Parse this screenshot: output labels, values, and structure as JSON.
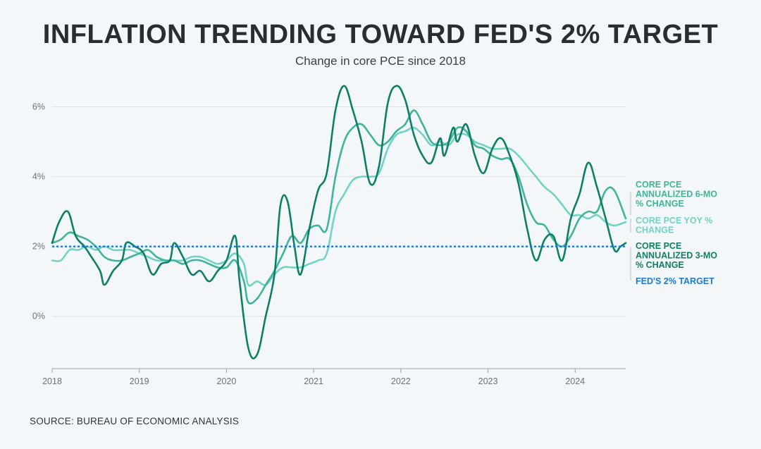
{
  "chart_data": {
    "type": "line",
    "title": "INFLATION TRENDING TOWARD FED'S 2% TARGET",
    "subtitle": "Change in core PCE since 2018",
    "source": "SOURCE: BUREAU OF ECONOMIC ANALYSIS",
    "xlim": [
      2018.0,
      2024.58
    ],
    "ylim": [
      -1.5,
      7.0
    ],
    "x_ticks": [
      2018,
      2019,
      2020,
      2021,
      2022,
      2023,
      2024
    ],
    "x_tick_labels": [
      "2018",
      "2019",
      "2020",
      "2021",
      "2022",
      "2023",
      "2024"
    ],
    "y_ticks": [
      0,
      2,
      4,
      6
    ],
    "y_tick_labels": [
      "0%",
      "2%",
      "4%",
      "6%"
    ],
    "grid": "horizontal",
    "legend": "right (inline labels)",
    "series": [
      {
        "name": "CORE PCE YOY % CHANGE",
        "label_lines": [
          "CORE PCE YOY %",
          "CHANGE"
        ],
        "color": "#72d3c4",
        "points": [
          [
            2018.0,
            1.6
          ],
          [
            2018.1,
            1.6
          ],
          [
            2018.2,
            1.9
          ],
          [
            2018.3,
            1.9
          ],
          [
            2018.4,
            2.0
          ],
          [
            2018.5,
            1.9
          ],
          [
            2018.6,
            2.0
          ],
          [
            2018.7,
            1.9
          ],
          [
            2018.8,
            1.9
          ],
          [
            2018.9,
            1.9
          ],
          [
            2019.0,
            1.8
          ],
          [
            2019.1,
            1.7
          ],
          [
            2019.2,
            1.6
          ],
          [
            2019.3,
            1.6
          ],
          [
            2019.4,
            1.6
          ],
          [
            2019.5,
            1.6
          ],
          [
            2019.6,
            1.7
          ],
          [
            2019.7,
            1.7
          ],
          [
            2019.8,
            1.6
          ],
          [
            2019.9,
            1.5
          ],
          [
            2020.0,
            1.6
          ],
          [
            2020.1,
            1.8
          ],
          [
            2020.2,
            1.5
          ],
          [
            2020.25,
            0.9
          ],
          [
            2020.35,
            1.0
          ],
          [
            2020.45,
            0.9
          ],
          [
            2020.55,
            1.2
          ],
          [
            2020.65,
            1.4
          ],
          [
            2020.75,
            1.4
          ],
          [
            2020.85,
            1.4
          ],
          [
            2020.95,
            1.5
          ],
          [
            2021.05,
            1.6
          ],
          [
            2021.15,
            1.8
          ],
          [
            2021.25,
            3.0
          ],
          [
            2021.35,
            3.5
          ],
          [
            2021.45,
            3.9
          ],
          [
            2021.55,
            4.0
          ],
          [
            2021.65,
            4.0
          ],
          [
            2021.75,
            4.1
          ],
          [
            2021.85,
            4.8
          ],
          [
            2021.95,
            5.2
          ],
          [
            2022.05,
            5.3
          ],
          [
            2022.15,
            5.4
          ],
          [
            2022.25,
            5.2
          ],
          [
            2022.35,
            4.9
          ],
          [
            2022.45,
            5.0
          ],
          [
            2022.55,
            4.9
          ],
          [
            2022.65,
            5.2
          ],
          [
            2022.75,
            5.2
          ],
          [
            2022.85,
            5.0
          ],
          [
            2022.95,
            4.9
          ],
          [
            2023.05,
            4.8
          ],
          [
            2023.15,
            4.8
          ],
          [
            2023.25,
            4.8
          ],
          [
            2023.35,
            4.6
          ],
          [
            2023.45,
            4.3
          ],
          [
            2023.55,
            4.0
          ],
          [
            2023.65,
            3.7
          ],
          [
            2023.75,
            3.5
          ],
          [
            2023.85,
            3.2
          ],
          [
            2023.95,
            2.9
          ],
          [
            2024.05,
            2.9
          ],
          [
            2024.15,
            2.8
          ],
          [
            2024.25,
            2.9
          ],
          [
            2024.35,
            2.7
          ],
          [
            2024.45,
            2.6
          ],
          [
            2024.58,
            2.7
          ]
        ]
      },
      {
        "name": "CORE PCE ANNUALIZED 6-MO % CHANGE",
        "label_lines": [
          "CORE PCE",
          "ANNUALIZED 6-MO",
          "% CHANGE"
        ],
        "color": "#40b49a",
        "points": [
          [
            2018.0,
            2.1
          ],
          [
            2018.1,
            2.2
          ],
          [
            2018.2,
            2.4
          ],
          [
            2018.3,
            2.3
          ],
          [
            2018.4,
            2.2
          ],
          [
            2018.5,
            2.0
          ],
          [
            2018.6,
            1.7
          ],
          [
            2018.7,
            1.6
          ],
          [
            2018.8,
            1.6
          ],
          [
            2018.9,
            1.7
          ],
          [
            2019.0,
            1.8
          ],
          [
            2019.1,
            1.9
          ],
          [
            2019.2,
            1.7
          ],
          [
            2019.3,
            1.6
          ],
          [
            2019.4,
            1.6
          ],
          [
            2019.5,
            1.5
          ],
          [
            2019.6,
            1.6
          ],
          [
            2019.7,
            1.6
          ],
          [
            2019.8,
            1.5
          ],
          [
            2019.9,
            1.4
          ],
          [
            2020.0,
            1.4
          ],
          [
            2020.1,
            1.6
          ],
          [
            2020.2,
            1.0
          ],
          [
            2020.25,
            0.4
          ],
          [
            2020.35,
            0.5
          ],
          [
            2020.45,
            0.9
          ],
          [
            2020.55,
            1.3
          ],
          [
            2020.65,
            1.8
          ],
          [
            2020.75,
            2.3
          ],
          [
            2020.85,
            2.1
          ],
          [
            2020.95,
            2.5
          ],
          [
            2021.05,
            2.6
          ],
          [
            2021.15,
            2.5
          ],
          [
            2021.25,
            4.0
          ],
          [
            2021.35,
            5.0
          ],
          [
            2021.45,
            5.4
          ],
          [
            2021.55,
            5.5
          ],
          [
            2021.65,
            5.2
          ],
          [
            2021.75,
            4.9
          ],
          [
            2021.85,
            5.0
          ],
          [
            2021.95,
            5.3
          ],
          [
            2022.05,
            5.5
          ],
          [
            2022.15,
            5.9
          ],
          [
            2022.25,
            5.5
          ],
          [
            2022.35,
            5.0
          ],
          [
            2022.45,
            4.9
          ],
          [
            2022.55,
            5.0
          ],
          [
            2022.65,
            5.4
          ],
          [
            2022.75,
            5.3
          ],
          [
            2022.85,
            4.9
          ],
          [
            2022.95,
            4.8
          ],
          [
            2023.05,
            4.6
          ],
          [
            2023.15,
            4.5
          ],
          [
            2023.25,
            4.5
          ],
          [
            2023.35,
            4.0
          ],
          [
            2023.45,
            3.2
          ],
          [
            2023.55,
            2.7
          ],
          [
            2023.65,
            2.6
          ],
          [
            2023.75,
            2.2
          ],
          [
            2023.85,
            2.0
          ],
          [
            2023.95,
            2.3
          ],
          [
            2024.05,
            2.8
          ],
          [
            2024.15,
            3.0
          ],
          [
            2024.25,
            3.0
          ],
          [
            2024.35,
            3.6
          ],
          [
            2024.45,
            3.6
          ],
          [
            2024.58,
            2.8
          ]
        ]
      },
      {
        "name": "CORE PCE ANNUALIZED 3-MO % CHANGE",
        "label_lines": [
          "CORE PCE",
          "ANNUALIZED 3-MO",
          "% CHANGE"
        ],
        "color": "#0e7f67",
        "points": [
          [
            2018.0,
            2.1
          ],
          [
            2018.08,
            2.7
          ],
          [
            2018.18,
            3.0
          ],
          [
            2018.27,
            2.3
          ],
          [
            2018.37,
            2.0
          ],
          [
            2018.45,
            1.7
          ],
          [
            2018.55,
            1.3
          ],
          [
            2018.6,
            0.9
          ],
          [
            2018.7,
            1.3
          ],
          [
            2018.8,
            1.6
          ],
          [
            2018.85,
            2.1
          ],
          [
            2018.95,
            2.0
          ],
          [
            2019.05,
            1.8
          ],
          [
            2019.15,
            1.2
          ],
          [
            2019.25,
            1.5
          ],
          [
            2019.35,
            1.6
          ],
          [
            2019.4,
            2.1
          ],
          [
            2019.5,
            1.7
          ],
          [
            2019.6,
            1.2
          ],
          [
            2019.7,
            1.3
          ],
          [
            2019.8,
            1.0
          ],
          [
            2019.9,
            1.3
          ],
          [
            2020.0,
            1.6
          ],
          [
            2020.1,
            2.3
          ],
          [
            2020.15,
            1.0
          ],
          [
            2020.25,
            -0.9
          ],
          [
            2020.35,
            -1.1
          ],
          [
            2020.45,
            0.0
          ],
          [
            2020.55,
            1.2
          ],
          [
            2020.62,
            3.2
          ],
          [
            2020.7,
            3.3
          ],
          [
            2020.78,
            2.0
          ],
          [
            2020.85,
            1.2
          ],
          [
            2020.95,
            2.5
          ],
          [
            2021.05,
            3.6
          ],
          [
            2021.15,
            4.1
          ],
          [
            2021.25,
            5.9
          ],
          [
            2021.35,
            6.6
          ],
          [
            2021.45,
            5.9
          ],
          [
            2021.55,
            5.0
          ],
          [
            2021.65,
            3.8
          ],
          [
            2021.75,
            4.3
          ],
          [
            2021.85,
            6.1
          ],
          [
            2021.95,
            6.6
          ],
          [
            2022.05,
            6.2
          ],
          [
            2022.15,
            5.2
          ],
          [
            2022.25,
            4.6
          ],
          [
            2022.35,
            4.4
          ],
          [
            2022.45,
            5.1
          ],
          [
            2022.5,
            4.6
          ],
          [
            2022.6,
            5.4
          ],
          [
            2022.65,
            5.0
          ],
          [
            2022.75,
            5.5
          ],
          [
            2022.85,
            4.6
          ],
          [
            2022.95,
            4.1
          ],
          [
            2023.05,
            4.8
          ],
          [
            2023.15,
            5.1
          ],
          [
            2023.25,
            4.6
          ],
          [
            2023.35,
            3.8
          ],
          [
            2023.45,
            2.5
          ],
          [
            2023.55,
            1.6
          ],
          [
            2023.65,
            2.2
          ],
          [
            2023.75,
            2.3
          ],
          [
            2023.85,
            1.6
          ],
          [
            2023.95,
            2.8
          ],
          [
            2024.05,
            3.5
          ],
          [
            2024.15,
            4.4
          ],
          [
            2024.25,
            3.7
          ],
          [
            2024.35,
            2.8
          ],
          [
            2024.45,
            1.9
          ],
          [
            2024.52,
            2.0
          ],
          [
            2024.58,
            2.1
          ]
        ]
      },
      {
        "name": "FED'S 2% TARGET",
        "label_lines": [
          "FED'S 2% TARGET"
        ],
        "color": "#1e7acb",
        "style": "dotted",
        "points": [
          [
            2018.0,
            2.0
          ],
          [
            2024.58,
            2.0
          ]
        ]
      }
    ]
  }
}
